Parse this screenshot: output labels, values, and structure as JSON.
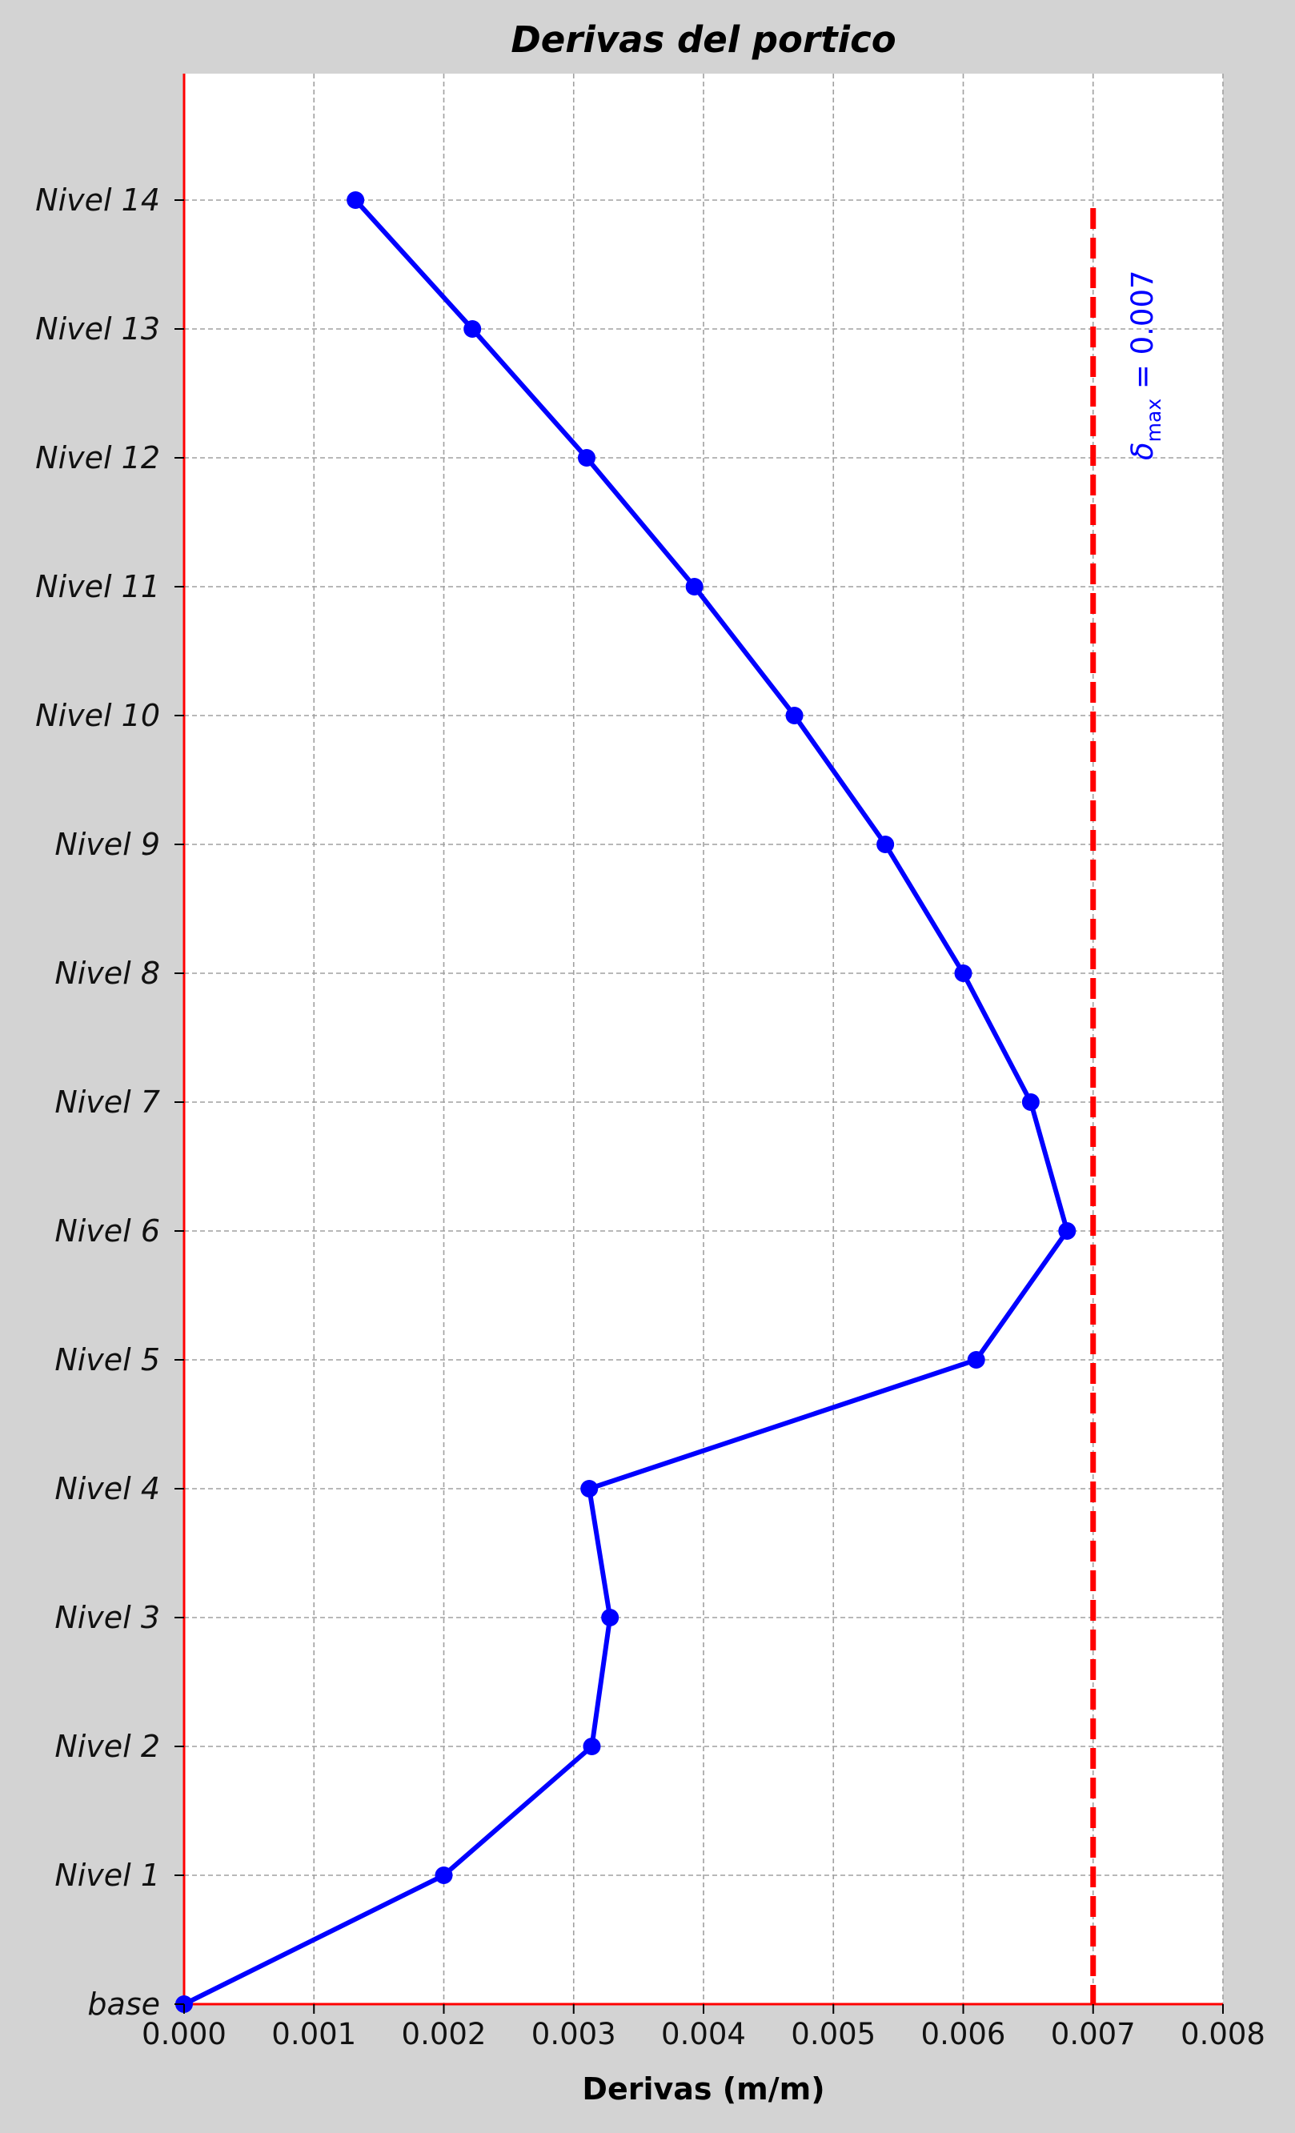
{
  "chart_data": {
    "type": "line",
    "title": "Derivas del portico",
    "xlabel": "Derivas (m/m)",
    "ylabel": "",
    "xlim": [
      0,
      0.008
    ],
    "x_ticks": [
      "0.000",
      "0.001",
      "0.002",
      "0.003",
      "0.004",
      "0.005",
      "0.006",
      "0.007",
      "0.008"
    ],
    "categories": [
      "base",
      "Nivel 1",
      "Nivel 2",
      "Nivel 3",
      "Nivel 4",
      "Nivel 5",
      "Nivel 6",
      "Nivel 7",
      "Nivel 8",
      "Nivel 9",
      "Nivel 10",
      "Nivel 11",
      "Nivel 12",
      "Nivel 13",
      "Nivel 14"
    ],
    "series": [
      {
        "values": [
          0.0,
          0.002,
          0.00314,
          0.00328,
          0.00312,
          0.0061,
          0.0068,
          0.00652,
          0.006,
          0.0054,
          0.0047,
          0.00393,
          0.0031,
          0.00222,
          0.00132
        ],
        "color": "#0000ff",
        "marker": "circle"
      }
    ],
    "reference_line": {
      "x": 0.007,
      "label_symbol": "δ",
      "label_sub": "max",
      "label_rest": " = 0.007",
      "color": "#ff0000",
      "style": "dashed"
    },
    "grid": true,
    "colors": {
      "figure_bg": "#d3d3d3",
      "plot_bg": "#ffffff",
      "grid": "#a0a0a0",
      "axis_lines": "#ff0000",
      "series": "#0000ff",
      "annotation": "#0000ff"
    }
  }
}
